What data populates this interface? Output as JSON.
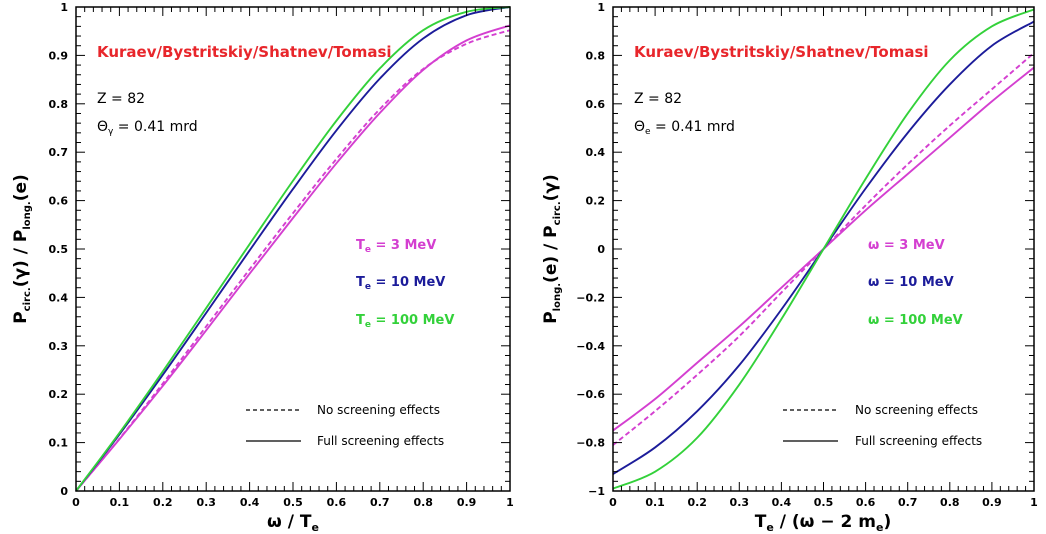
{
  "colors": {
    "red": "#e8262b",
    "magenta": "#d43fd0",
    "blue": "#1c1c9a",
    "green": "#33d13a"
  },
  "chart_data": [
    {
      "type": "line",
      "title": "",
      "xlabel": "ω / T",
      "xlabel_sub": "e",
      "ylabel": "P",
      "ylabel_sub1": "circ.",
      "ylabel_mid": "(γ) / P",
      "ylabel_sub2": "long.",
      "ylabel_tail": "(e)",
      "xlim": [
        0,
        1
      ],
      "ylim": [
        0,
        1
      ],
      "xticks": [
        "0",
        "0.1",
        "0.2",
        "0.3",
        "0.4",
        "0.5",
        "0.6",
        "0.7",
        "0.8",
        "0.9",
        "1"
      ],
      "yticks": [
        "0",
        "0.1",
        "0.2",
        "0.3",
        "0.4",
        "0.5",
        "0.6",
        "0.7",
        "0.8",
        "0.9",
        "1"
      ],
      "grid": false,
      "credit": "Kuraev/Bystritskiy/Shatnev/Tomasi",
      "z_label": "Z = 82",
      "theta_label": "Θ",
      "theta_sub": "γ",
      "theta_value": " = 0.41 mrd",
      "legend_prefix": "T",
      "legend_prefix_sub": "e",
      "legend_values": [
        " = 3 MeV",
        " = 10 MeV",
        " = 100 MeV"
      ],
      "style_legend": [
        "No screening effects",
        "Full screening effects"
      ],
      "x": [
        0,
        0.1,
        0.2,
        0.3,
        0.4,
        0.5,
        0.6,
        0.7,
        0.8,
        0.9,
        1.0
      ],
      "series": [
        {
          "name": "T_e = 3 MeV",
          "color": "magenta",
          "style": "solid",
          "values": [
            0,
            0.107,
            0.217,
            0.332,
            0.449,
            0.564,
            0.677,
            0.781,
            0.87,
            0.931,
            0.962
          ]
        },
        {
          "name": "T_e = 3 MeV",
          "color": "magenta",
          "style": "dashed",
          "values": [
            0,
            0.108,
            0.222,
            0.34,
            0.458,
            0.574,
            0.686,
            0.789,
            0.872,
            0.924,
            0.952
          ]
        },
        {
          "name": "T_e = 10 MeV",
          "color": "blue",
          "style": "solid",
          "values": [
            0,
            0.117,
            0.24,
            0.368,
            0.497,
            0.624,
            0.745,
            0.852,
            0.935,
            0.983,
            1.0
          ]
        },
        {
          "name": "T_e = 100 MeV",
          "color": "green",
          "style": "solid",
          "values": [
            0,
            0.12,
            0.247,
            0.378,
            0.51,
            0.641,
            0.765,
            0.873,
            0.952,
            0.99,
            1.0
          ]
        }
      ]
    },
    {
      "type": "line",
      "title": "",
      "xlabel": "T",
      "xlabel_sub": "e",
      "xlabel_tail": " / (ω − 2 m",
      "xlabel_sub2": "e",
      "xlabel_end": ")",
      "ylabel": "P",
      "ylabel_sub1": "long.",
      "ylabel_mid": "(e) / P",
      "ylabel_sub2": "circ.",
      "ylabel_tail": "(γ)",
      "xlim": [
        0,
        1
      ],
      "ylim": [
        -1,
        1
      ],
      "xticks": [
        "0",
        "0.1",
        "0.2",
        "0.3",
        "0.4",
        "0.5",
        "0.6",
        "0.7",
        "0.8",
        "0.9",
        "1"
      ],
      "yticks": [
        "−1",
        "−0.8",
        "−0.6",
        "−0.4",
        "−0.2",
        "0",
        "0.2",
        "0.4",
        "0.6",
        "0.8",
        "1"
      ],
      "grid": false,
      "credit": "Kuraev/Bystritskiy/Shatnev/Tomasi",
      "z_label": "Z = 82",
      "theta_label": "Θ",
      "theta_sub": "e",
      "theta_value": " = 0.41 mrd",
      "legend_prefix": "ω",
      "legend_prefix_sub": "",
      "legend_values": [
        " = 3 MeV",
        " = 10 MeV",
        " = 100 MeV"
      ],
      "style_legend": [
        "No screening effects",
        "Full screening effects"
      ],
      "x": [
        0,
        0.1,
        0.2,
        0.3,
        0.4,
        0.5,
        0.6,
        0.7,
        0.8,
        0.9,
        1.0
      ],
      "series": [
        {
          "name": "ω = 3 MeV",
          "color": "magenta",
          "style": "solid",
          "values": [
            -0.75,
            -0.62,
            -0.47,
            -0.32,
            -0.16,
            0.0,
            0.16,
            0.31,
            0.46,
            0.61,
            0.75
          ]
        },
        {
          "name": "ω = 3 MeV",
          "color": "magenta",
          "style": "dashed",
          "values": [
            -0.81,
            -0.67,
            -0.52,
            -0.36,
            -0.18,
            0.0,
            0.18,
            0.35,
            0.51,
            0.66,
            0.81
          ]
        },
        {
          "name": "ω = 10 MeV",
          "color": "blue",
          "style": "solid",
          "values": [
            -0.93,
            -0.82,
            -0.67,
            -0.48,
            -0.25,
            0.0,
            0.25,
            0.48,
            0.68,
            0.84,
            0.94
          ]
        },
        {
          "name": "ω = 100 MeV",
          "color": "green",
          "style": "solid",
          "values": [
            -0.99,
            -0.92,
            -0.78,
            -0.56,
            -0.29,
            0.0,
            0.29,
            0.56,
            0.78,
            0.92,
            0.99
          ]
        }
      ]
    }
  ]
}
